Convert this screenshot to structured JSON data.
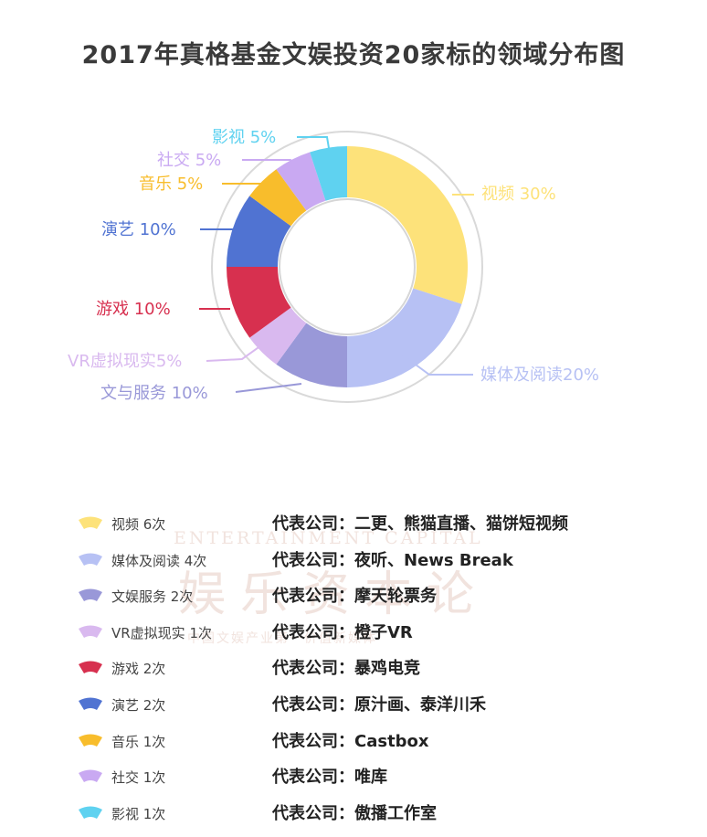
{
  "title": "2017年真格基金文娱投资20家标的领域分布图",
  "watermark": {
    "en": "ENTERTAINMENT CAPITAL",
    "cn": "娱乐资本论",
    "sub": "中国文娱产业第一价值新媒体"
  },
  "chart_data": {
    "type": "pie",
    "donut": true,
    "title": "2017年真格基金文娱投资20家标的领域分布图",
    "slices": [
      {
        "name": "视频",
        "label": "视频 30%",
        "value": 30,
        "color": "#fde27a"
      },
      {
        "name": "媒体及阅读",
        "label": "媒体及阅读20%",
        "value": 20,
        "color": "#b7c1f4"
      },
      {
        "name": "文与服务",
        "label": "文与服务 10%",
        "value": 10,
        "color": "#9998d8"
      },
      {
        "name": "VR虚拟现实",
        "label": "VR虚拟现实5%",
        "value": 5,
        "color": "#d9b9ef"
      },
      {
        "name": "游戏",
        "label": "游戏 10%",
        "value": 10,
        "color": "#d7304f"
      },
      {
        "name": "演艺",
        "label": "演艺 10%",
        "value": 10,
        "color": "#5073d2"
      },
      {
        "name": "音乐",
        "label": "音乐 5%",
        "value": 5,
        "color": "#f8bd2c"
      },
      {
        "name": "社交",
        "label": "社交 5%",
        "value": 5,
        "color": "#c9a9f2"
      },
      {
        "name": "影视",
        "label": "影视 5%",
        "value": 5,
        "color": "#5fd2f0"
      }
    ],
    "legend": [
      {
        "name": "视频 6次",
        "company": "代表公司：二更、熊猫直播、猫饼短视频",
        "color": "#fde27a"
      },
      {
        "name": "媒体及阅读 4次",
        "company": "代表公司：夜听、News Break",
        "color": "#b7c1f4"
      },
      {
        "name": "文娱服务 2次",
        "company": "代表公司：摩天轮票务",
        "color": "#9998d8"
      },
      {
        "name": "VR虚拟现实 1次",
        "company": "代表公司：橙子VR",
        "color": "#d9b9ef"
      },
      {
        "name": "游戏 2次",
        "company": "代表公司：暴鸡电竞",
        "color": "#d7304f"
      },
      {
        "name": "演艺 2次",
        "company": "代表公司：原汁画、泰洋川禾",
        "color": "#5073d2"
      },
      {
        "name": "音乐 1次",
        "company": "代表公司：Castbox",
        "color": "#f8bd2c"
      },
      {
        "name": "社交 1次",
        "company": "代表公司：唯库",
        "color": "#c9a9f2"
      },
      {
        "name": "影视 1次",
        "company": "代表公司：傲播工作室",
        "color": "#5fd2f0"
      }
    ]
  }
}
